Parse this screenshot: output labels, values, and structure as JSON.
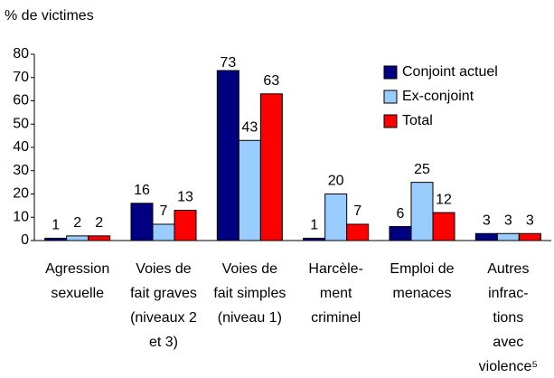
{
  "chart_data": {
    "type": "bar",
    "axis_title": "% de victimes",
    "categories": [
      [
        "Agression",
        "sexuelle"
      ],
      [
        "Voies de",
        "fait graves",
        "(niveaux 2",
        "et 3)"
      ],
      [
        "Voies de",
        "fait simples",
        "(niveau 1)"
      ],
      [
        "Harcèle-",
        "ment",
        "criminel"
      ],
      [
        "Emploi de",
        "menaces"
      ],
      [
        "Autres",
        "infrac-",
        "tions",
        "avec",
        "violence⁵"
      ]
    ],
    "series": [
      {
        "name": "Conjoint actuel",
        "color": "#000080",
        "values": [
          1,
          16,
          73,
          1,
          6,
          3
        ]
      },
      {
        "name": "Ex-conjoint",
        "color": "#99ccff",
        "values": [
          2,
          7,
          43,
          20,
          25,
          3
        ]
      },
      {
        "name": "Total",
        "color": "#ff0000",
        "values": [
          2,
          13,
          63,
          7,
          12,
          3
        ]
      }
    ],
    "ylim": [
      0,
      80
    ],
    "yticks": [
      0,
      10,
      20,
      30,
      40,
      50,
      60,
      70,
      80
    ],
    "legend": "top-right"
  }
}
